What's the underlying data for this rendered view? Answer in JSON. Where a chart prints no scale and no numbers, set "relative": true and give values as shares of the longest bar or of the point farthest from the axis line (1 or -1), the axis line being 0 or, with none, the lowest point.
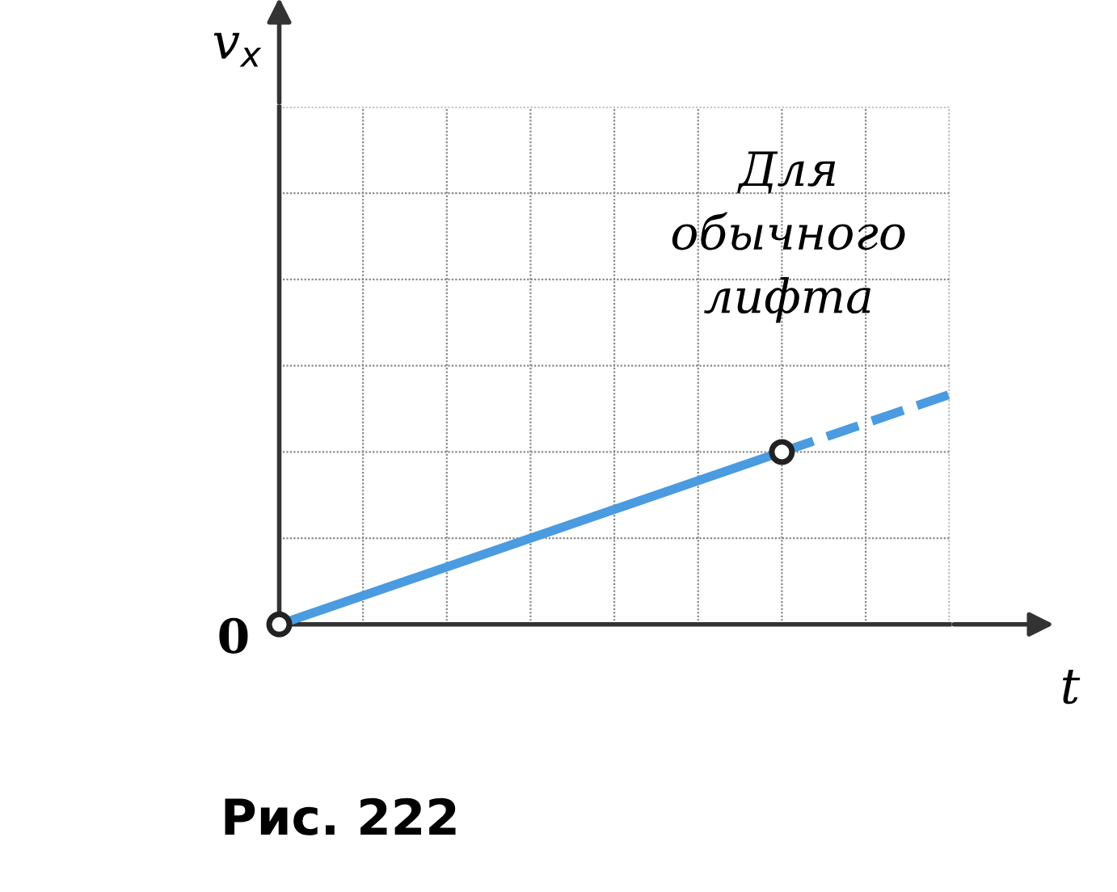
{
  "chart_data": {
    "type": "line",
    "relative": true,
    "xlabel": "t",
    "categories": [
      null,
      null,
      null,
      null,
      null,
      null,
      null,
      null,
      null
    ],
    "series": [
      {
        "color": "#4a9be0",
        "values": [
          0,
          null,
          null,
          null,
          null,
          null,
          0.75,
          null,
          null
        ],
        "marker": "circle",
        "line_style": "solid"
      },
      {
        "color": "#4a9be0",
        "values": [
          null,
          null,
          null,
          null,
          null,
          null,
          0.75,
          null,
          1
        ],
        "marker": "none",
        "line_style": "dashed"
      }
    ],
    "grid": true,
    "legend": false,
    "annotations": [
      "Для обычного лифта",
      "0",
      "Рис. 222",
      "v$_{x}$"
    ]
  }
}
